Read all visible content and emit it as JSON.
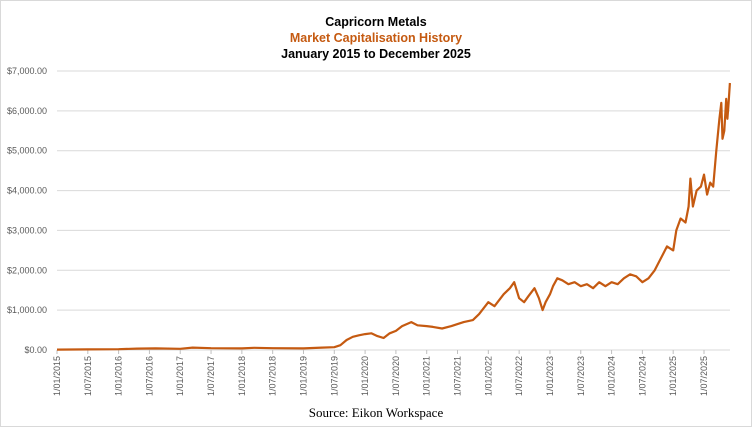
{
  "chart_data": {
    "type": "line",
    "title": "Capricorn Metals",
    "subtitle": "Market Capitalisation History",
    "subtitle2": "January 2015 to December 2025",
    "source": "Source: Eikon Workspace",
    "xlabel": "",
    "ylabel": "",
    "ylim": [
      0,
      7000
    ],
    "xlim": [
      2015.0,
      2025.92
    ],
    "grid": true,
    "line_color": "#c55a11",
    "y_ticks": [
      "$0.00",
      "$1,000.00",
      "$2,000.00",
      "$3,000.00",
      "$4,000.00",
      "$5,000.00",
      "$6,000.00",
      "$7,000.00"
    ],
    "x_ticks": [
      "1/01/2015",
      "1/07/2015",
      "1/01/2016",
      "1/07/2016",
      "1/01/2017",
      "1/07/2017",
      "1/01/2018",
      "1/07/2018",
      "1/01/2019",
      "1/07/2019",
      "1/01/2020",
      "1/07/2020",
      "1/01/2021",
      "1/07/2021",
      "1/01/2022",
      "1/07/2022",
      "1/01/2023",
      "1/07/2023",
      "1/01/2024",
      "1/07/2024",
      "1/01/2025",
      "1/07/2025"
    ],
    "series": [
      {
        "name": "Market Capitalisation",
        "x": [
          2015.0,
          2015.5,
          2016.0,
          2016.3,
          2016.6,
          2017.0,
          2017.2,
          2017.5,
          2018.0,
          2018.2,
          2018.5,
          2019.0,
          2019.3,
          2019.5,
          2019.6,
          2019.7,
          2019.8,
          2019.9,
          2020.0,
          2020.1,
          2020.2,
          2020.3,
          2020.4,
          2020.5,
          2020.6,
          2020.75,
          2020.85,
          2021.0,
          2021.1,
          2021.25,
          2021.4,
          2021.5,
          2021.6,
          2021.75,
          2021.85,
          2022.0,
          2022.1,
          2022.25,
          2022.35,
          2022.42,
          2022.5,
          2022.58,
          2022.65,
          2022.75,
          2022.82,
          2022.88,
          2022.93,
          2023.0,
          2023.05,
          2023.12,
          2023.2,
          2023.3,
          2023.4,
          2023.5,
          2023.6,
          2023.7,
          2023.8,
          2023.9,
          2024.0,
          2024.1,
          2024.2,
          2024.3,
          2024.4,
          2024.5,
          2024.6,
          2024.7,
          2024.8,
          2024.9,
          2025.0,
          2025.05,
          2025.12,
          2025.2,
          2025.25,
          2025.28,
          2025.32,
          2025.38,
          2025.45,
          2025.5,
          2025.55,
          2025.6,
          2025.65,
          2025.7,
          2025.75,
          2025.78,
          2025.8,
          2025.83,
          2025.86,
          2025.88,
          2025.9,
          2025.92
        ],
        "values": [
          10,
          15,
          20,
          35,
          40,
          30,
          60,
          45,
          40,
          55,
          45,
          40,
          60,
          70,
          120,
          250,
          330,
          370,
          400,
          420,
          350,
          300,
          420,
          480,
          600,
          700,
          620,
          600,
          580,
          540,
          600,
          650,
          700,
          750,
          900,
          1200,
          1100,
          1400,
          1550,
          1700,
          1300,
          1200,
          1350,
          1550,
          1300,
          1000,
          1200,
          1400,
          1600,
          1800,
          1750,
          1650,
          1700,
          1600,
          1650,
          1550,
          1700,
          1600,
          1700,
          1650,
          1800,
          1900,
          1850,
          1700,
          1800,
          2000,
          2300,
          2600,
          2500,
          3000,
          3300,
          3200,
          3600,
          4300,
          3600,
          4000,
          4100,
          4400,
          3900,
          4200,
          4100,
          5000,
          5800,
          6200,
          5300,
          5500,
          6300,
          5800,
          6200,
          6700
        ]
      }
    ]
  }
}
